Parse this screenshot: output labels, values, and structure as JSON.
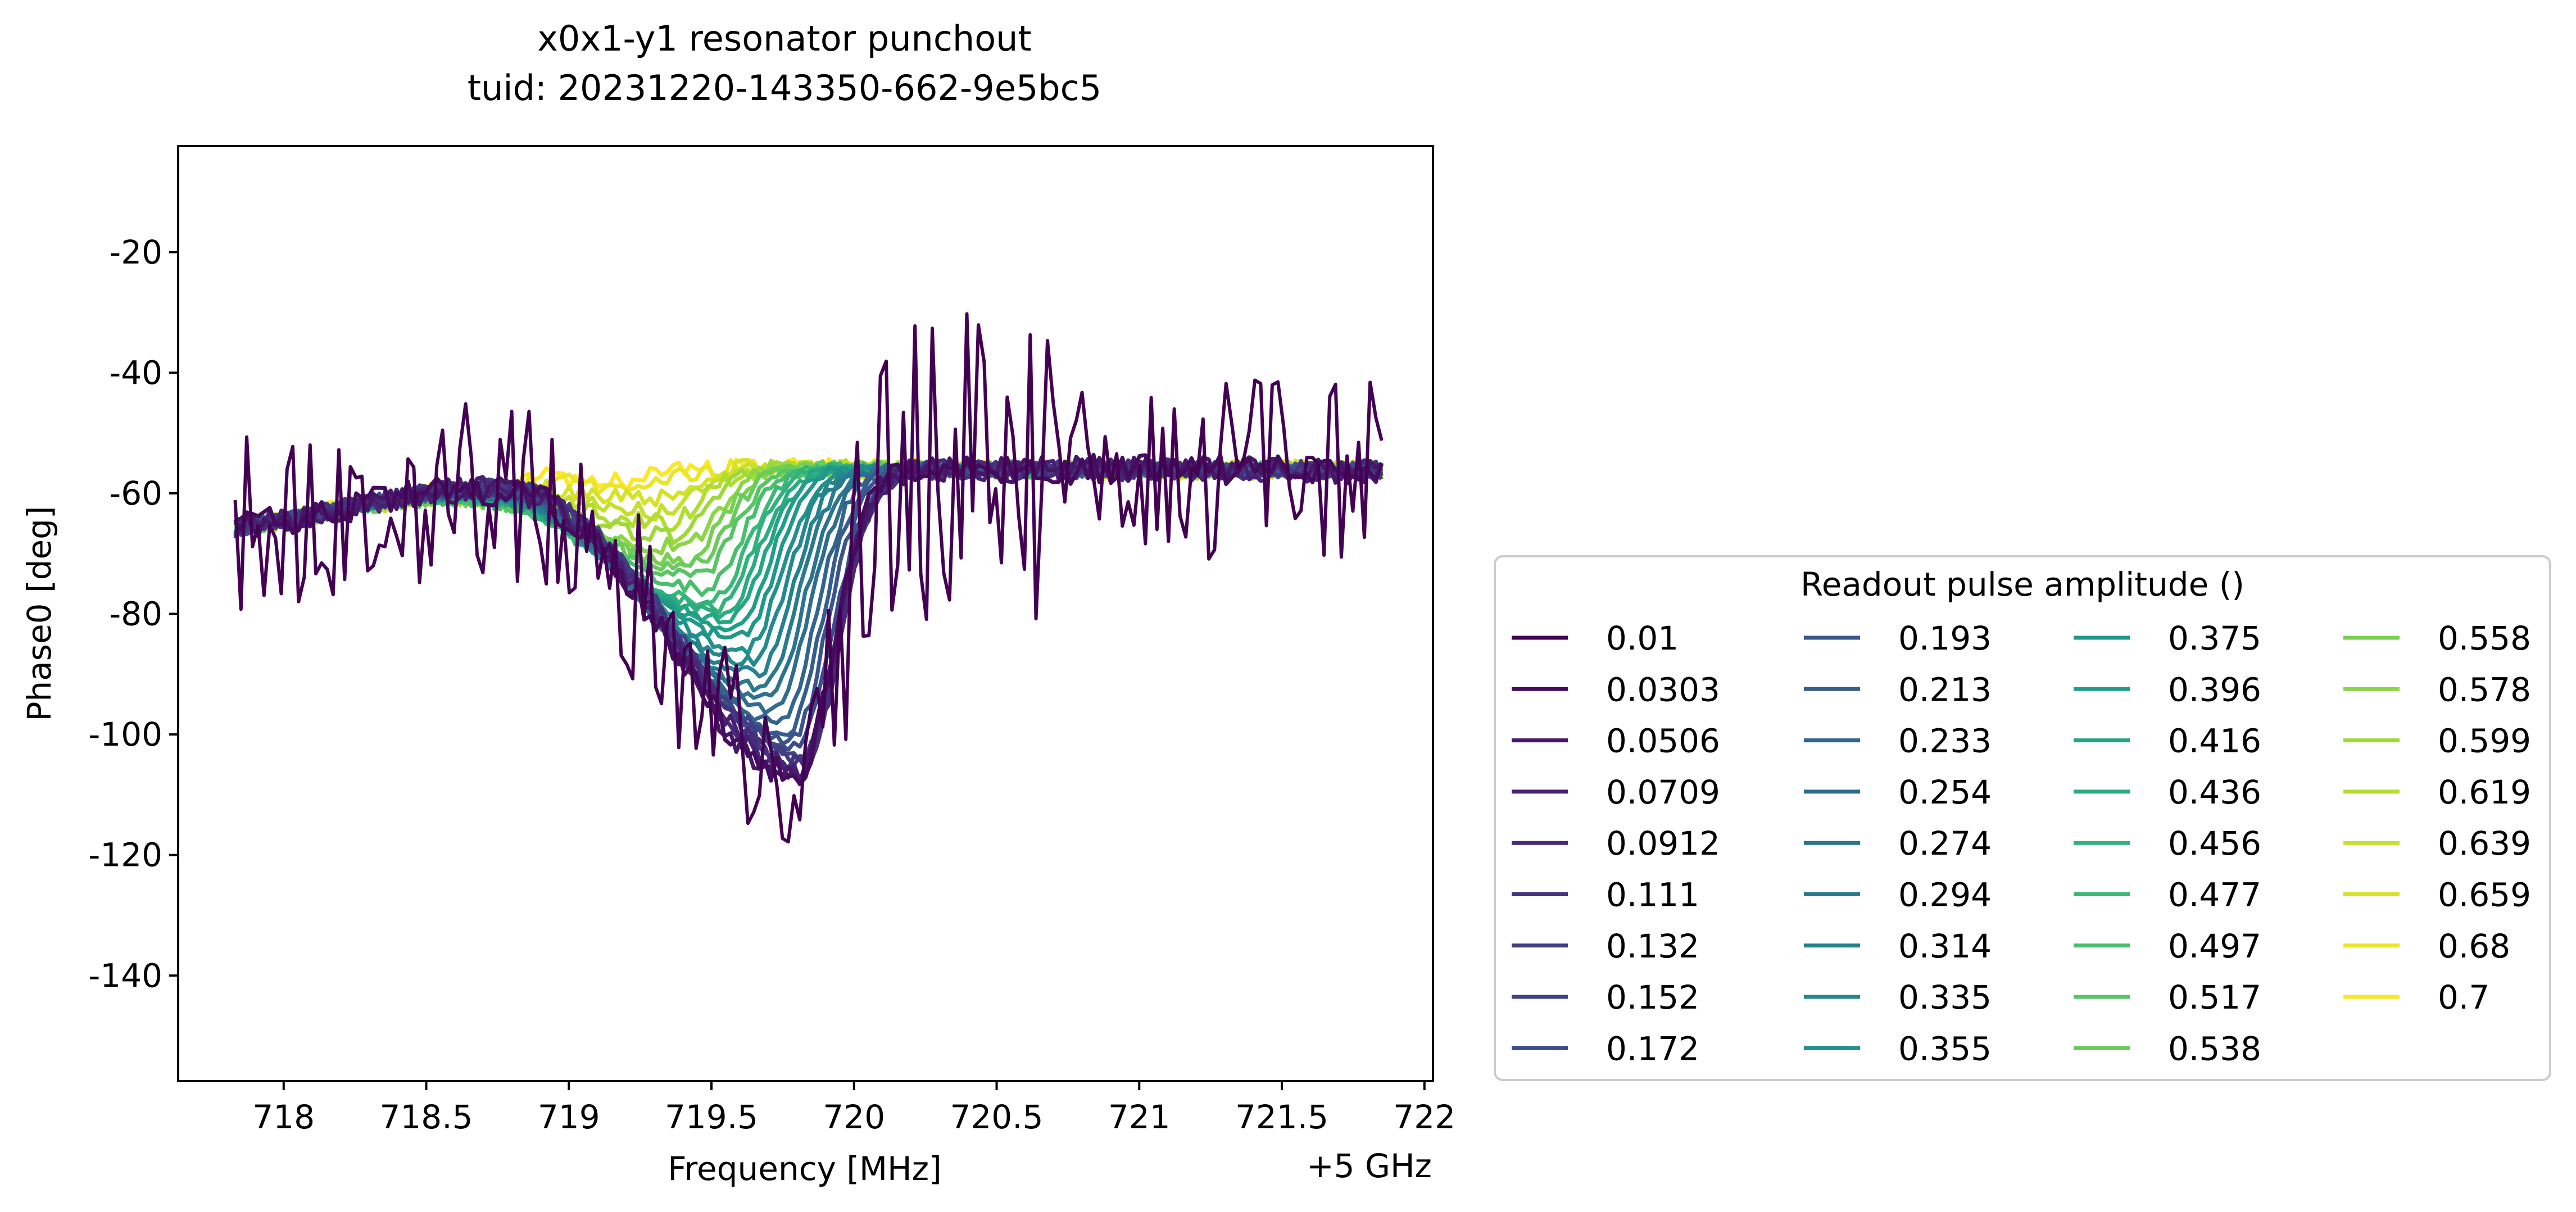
{
  "chart_data": {
    "type": "line",
    "title": "x0x1-y1 resonator punchout",
    "subtitle": "tuid: 20231220-143350-662-9e5bc5",
    "xlabel": "Frequency [MHz]",
    "x_offset_label": "+5 GHz",
    "ylabel": "Phase0 [deg]",
    "xlim": [
      717.63,
      722.03
    ],
    "ylim": [
      -157.5,
      -2.4
    ],
    "x_ticks": [
      718,
      718.5,
      719,
      719.5,
      720,
      720.5,
      721,
      721.5,
      722
    ],
    "x_tick_labels": [
      "718",
      "718.5",
      "719",
      "719.5",
      "720",
      "720.5",
      "721",
      "721.5",
      "722"
    ],
    "y_ticks": [
      -20,
      -40,
      -60,
      -80,
      -100,
      -120,
      -140
    ],
    "y_tick_labels": [
      "-20",
      "-40",
      "-60",
      "-80",
      "-100",
      "-120",
      "-140"
    ],
    "x_range": [
      717.83,
      721.85
    ],
    "points_per_series": 200,
    "colormap": "viridis",
    "colormap_stops": [
      "#440154",
      "#482878",
      "#3e4989",
      "#31688e",
      "#26828e",
      "#1f9e89",
      "#35b779",
      "#6ece58",
      "#b5de2b",
      "#fde725"
    ],
    "grid": false,
    "legend": {
      "title": "Readout pulse amplitude ()",
      "placement": "lower-right, outside plot",
      "columns": 4
    },
    "series": [
      {
        "name": "0.01",
        "amplitude": 0.01,
        "dip_center": 719.8,
        "dip_depth": 52,
        "noise": 15,
        "shoulder": 0
      },
      {
        "name": "0.0303",
        "amplitude": 0.0303,
        "dip_center": 719.8,
        "dip_depth": 51,
        "noise": 2.5,
        "shoulder": 0
      },
      {
        "name": "0.0506",
        "amplitude": 0.0506,
        "dip_center": 719.8,
        "dip_depth": 51,
        "noise": 2.2,
        "shoulder": 0
      },
      {
        "name": "0.0709",
        "amplitude": 0.0709,
        "dip_center": 719.81,
        "dip_depth": 50,
        "noise": 2.0,
        "shoulder": 0
      },
      {
        "name": "0.0912",
        "amplitude": 0.0912,
        "dip_center": 719.82,
        "dip_depth": 50,
        "noise": 1.8,
        "shoulder": 0
      },
      {
        "name": "0.111",
        "amplitude": 0.111,
        "dip_center": 719.82,
        "dip_depth": 49,
        "noise": 1.6,
        "shoulder": 0
      },
      {
        "name": "0.132",
        "amplitude": 0.132,
        "dip_center": 719.82,
        "dip_depth": 48,
        "noise": 1.5,
        "shoulder": 0
      },
      {
        "name": "0.152",
        "amplitude": 0.152,
        "dip_center": 719.82,
        "dip_depth": 47,
        "noise": 1.4,
        "shoulder": 0
      },
      {
        "name": "0.172",
        "amplitude": 0.172,
        "dip_center": 719.8,
        "dip_depth": 46,
        "noise": 1.3,
        "shoulder": 0
      },
      {
        "name": "0.193",
        "amplitude": 0.193,
        "dip_center": 719.78,
        "dip_depth": 45,
        "noise": 1.2,
        "shoulder": 0
      },
      {
        "name": "0.213",
        "amplitude": 0.213,
        "dip_center": 719.76,
        "dip_depth": 44,
        "noise": 1.2,
        "shoulder": 0
      },
      {
        "name": "0.233",
        "amplitude": 0.233,
        "dip_center": 719.74,
        "dip_depth": 42,
        "noise": 1.1,
        "shoulder": 0
      },
      {
        "name": "0.254",
        "amplitude": 0.254,
        "dip_center": 719.72,
        "dip_depth": 40,
        "noise": 1.1,
        "shoulder": 0
      },
      {
        "name": "0.274",
        "amplitude": 0.274,
        "dip_center": 719.7,
        "dip_depth": 38,
        "noise": 1.0,
        "shoulder": 0
      },
      {
        "name": "0.294",
        "amplitude": 0.294,
        "dip_center": 719.68,
        "dip_depth": 36,
        "noise": 1.0,
        "shoulder": 0
      },
      {
        "name": "0.314",
        "amplitude": 0.314,
        "dip_center": 719.66,
        "dip_depth": 34,
        "noise": 1.0,
        "shoulder": 0
      },
      {
        "name": "0.335",
        "amplitude": 0.335,
        "dip_center": 719.64,
        "dip_depth": 32,
        "noise": 1.0,
        "shoulder": 0
      },
      {
        "name": "0.355",
        "amplitude": 0.355,
        "dip_center": 719.62,
        "dip_depth": 30,
        "noise": 1.0,
        "shoulder": 0
      },
      {
        "name": "0.375",
        "amplitude": 0.375,
        "dip_center": 719.6,
        "dip_depth": 28,
        "noise": 1.0,
        "shoulder": 0
      },
      {
        "name": "0.396",
        "amplitude": 0.396,
        "dip_center": 719.58,
        "dip_depth": 26,
        "noise": 1.0,
        "shoulder": 0
      },
      {
        "name": "0.416",
        "amplitude": 0.416,
        "dip_center": 719.56,
        "dip_depth": 25,
        "noise": 1.0,
        "shoulder": 0
      },
      {
        "name": "0.436",
        "amplitude": 0.436,
        "dip_center": 719.54,
        "dip_depth": 24,
        "noise": 1.0,
        "shoulder": 0
      },
      {
        "name": "0.456",
        "amplitude": 0.456,
        "dip_center": 719.52,
        "dip_depth": 23,
        "noise": 1.1,
        "shoulder": 0
      },
      {
        "name": "0.477",
        "amplitude": 0.477,
        "dip_center": 719.5,
        "dip_depth": 22,
        "noise": 1.1,
        "shoulder": 0
      },
      {
        "name": "0.497",
        "amplitude": 0.497,
        "dip_center": 719.48,
        "dip_depth": 20,
        "noise": 1.2,
        "shoulder": 0
      },
      {
        "name": "0.517",
        "amplitude": 0.517,
        "dip_center": 719.45,
        "dip_depth": 18,
        "noise": 1.2,
        "shoulder": 0
      },
      {
        "name": "0.538",
        "amplitude": 0.538,
        "dip_center": 719.43,
        "dip_depth": 16,
        "noise": 1.3,
        "shoulder": 0
      },
      {
        "name": "0.558",
        "amplitude": 0.558,
        "dip_center": 719.41,
        "dip_depth": 15,
        "noise": 1.3,
        "shoulder": 0
      },
      {
        "name": "0.578",
        "amplitude": 0.578,
        "dip_center": 719.39,
        "dip_depth": 13,
        "noise": 1.4,
        "shoulder": 0
      },
      {
        "name": "0.599",
        "amplitude": 0.599,
        "dip_center": 719.37,
        "dip_depth": 11,
        "noise": 1.4,
        "shoulder": 0
      },
      {
        "name": "0.619",
        "amplitude": 0.619,
        "dip_center": 719.34,
        "dip_depth": 9,
        "noise": 1.5,
        "shoulder": 0
      },
      {
        "name": "0.639",
        "amplitude": 0.639,
        "dip_center": 719.31,
        "dip_depth": 7,
        "noise": 1.5,
        "shoulder": 0
      },
      {
        "name": "0.659",
        "amplitude": 0.659,
        "dip_center": 719.28,
        "dip_depth": 5,
        "noise": 1.6,
        "shoulder": 0
      },
      {
        "name": "0.68",
        "amplitude": 0.68,
        "dip_center": 719.24,
        "dip_depth": 3,
        "noise": 1.6,
        "shoulder": 0
      },
      {
        "name": "0.7",
        "amplitude": 0.7,
        "dip_center": 719.2,
        "dip_depth": 2,
        "noise": 1.7,
        "shoulder": 0
      }
    ]
  }
}
